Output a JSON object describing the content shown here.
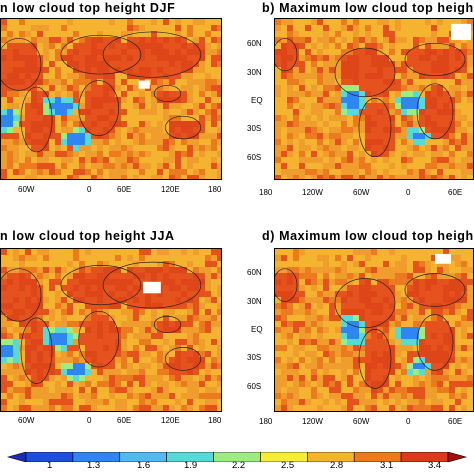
{
  "panels": [
    {
      "id": "a",
      "title": "n low cloud top height DJF",
      "lon_labels": [
        "60W",
        "0",
        "60E",
        "120E",
        "180"
      ],
      "lat_labels": []
    },
    {
      "id": "b",
      "title": "b) Maximum low cloud top height",
      "lon_labels": [
        "180",
        "120W",
        "60W",
        "0",
        "60E"
      ],
      "lat_labels": [
        "60N",
        "30N",
        "EQ",
        "30S",
        "60S"
      ]
    },
    {
      "id": "c",
      "title": "n low cloud top height JJA",
      "lon_labels": [
        "60W",
        "0",
        "60E",
        "120E",
        "180"
      ],
      "lat_labels": []
    },
    {
      "id": "d",
      "title": "d) Maximum low cloud top height",
      "lon_labels": [
        "180",
        "120W",
        "60W",
        "0",
        "60E"
      ],
      "lat_labels": [
        "60N",
        "30N",
        "EQ",
        "30S",
        "60S"
      ]
    }
  ],
  "colorbar": {
    "labels": [
      "1",
      "1.3",
      "1.6",
      "1.9",
      "2.2",
      "2.5",
      "2.8",
      "3.1",
      "3.4"
    ],
    "colors": [
      "#1a2bb5",
      "#1e4fd8",
      "#2f86f0",
      "#52b9f3",
      "#57d9d5",
      "#9cec82",
      "#f5ec3c",
      "#f4b430",
      "#ec7a1e",
      "#d93c18",
      "#a30f0f"
    ]
  },
  "legend_colors": {
    "ocean_base": "#ef9d2c",
    "land": "#e6521d",
    "blue_low": "#2f86f0",
    "cyan_low": "#57d9d5",
    "green_low": "#9cec82",
    "red_high": "#c8231a"
  }
}
